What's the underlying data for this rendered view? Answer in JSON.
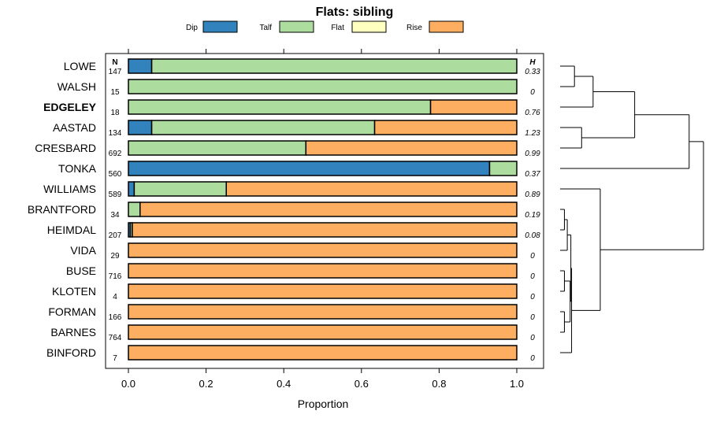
{
  "chart_data": {
    "type": "bar",
    "orientation": "horizontal",
    "stacked": true,
    "title": "Flats: sibling",
    "xlabel": "Proportion",
    "ylabel": "",
    "xlim": [
      0,
      1
    ],
    "xticks": [
      "0.0",
      "0.2",
      "0.4",
      "0.6",
      "0.8",
      "1.0"
    ],
    "legend_position": "top",
    "n_header": "N",
    "h_header": "H",
    "highlighted_category": "EDGELEY",
    "categories": [
      "LOWE",
      "WALSH",
      "EDGELEY",
      "AASTAD",
      "CRESBARD",
      "TONKA",
      "WILLIAMS",
      "BRANTFORD",
      "HEIMDAL",
      "VIDA",
      "BUSE",
      "KLOTEN",
      "FORMAN",
      "BARNES",
      "BINFORD"
    ],
    "n": [
      "147",
      "15",
      "18",
      "134",
      "692",
      "560",
      "589",
      "34",
      "207",
      "29",
      "716",
      "4",
      "166",
      "764",
      "7"
    ],
    "h": [
      "0.33",
      "0",
      "0.76",
      "1.23",
      "0.99",
      "0.37",
      "0.89",
      "0.19",
      "0.08",
      "0",
      "0",
      "0",
      "0",
      "0",
      "0"
    ],
    "series": [
      {
        "name": "Dip",
        "color": "#3182bd",
        "values": [
          0.06,
          0,
          0,
          0.06,
          0,
          0.93,
          0.015,
          0,
          0.005,
          0,
          0,
          0,
          0,
          0,
          0
        ]
      },
      {
        "name": "Talf",
        "color": "#addd9e",
        "values": [
          0.94,
          1.0,
          0.778,
          0.574,
          0.457,
          0.07,
          0.237,
          0.03,
          0.005,
          0,
          0,
          0,
          0,
          0,
          0
        ]
      },
      {
        "name": "Flat",
        "color": "#ffffbf",
        "values": [
          0,
          0,
          0,
          0,
          0,
          0,
          0,
          0,
          0,
          0,
          0,
          0,
          0,
          0,
          0
        ]
      },
      {
        "name": "Rise",
        "color": "#fdae61",
        "values": [
          0,
          0,
          0.222,
          0.366,
          0.543,
          0,
          0.748,
          0.97,
          0.99,
          1.0,
          1.0,
          1.0,
          1.0,
          1.0,
          1.0
        ]
      }
    ],
    "dendrogram": {
      "nodes": [
        {
          "a": "LOWE",
          "b": "WALSH",
          "h": 0.1
        },
        {
          "a": "AASTAD",
          "b": "CRESBARD",
          "h": 0.15
        },
        {
          "a": 0,
          "b": "EDGELEY",
          "h": 0.23
        },
        {
          "a": 2,
          "b": 1,
          "h": 0.52
        },
        {
          "a": 3,
          "b": "TONKA",
          "h": 0.9
        },
        {
          "a": "BRANTFORD",
          "b": "HEIMDAL",
          "h": 0.03
        },
        {
          "a": "BUSE",
          "b": "KLOTEN",
          "h": 0.03
        },
        {
          "a": "FORMAN",
          "b": "BARNES",
          "h": 0.03
        },
        {
          "a": 5,
          "b": "VIDA",
          "h": 0.05
        },
        {
          "a": 6,
          "b": 7,
          "h": 0.07
        },
        {
          "a": 8,
          "b": 9,
          "h": 0.075
        },
        {
          "a": 10,
          "b": "BINFORD",
          "h": 0.08
        },
        {
          "a": "WILLIAMS",
          "b": 11,
          "h": 0.28
        },
        {
          "a": 4,
          "b": 12,
          "h": 1.0
        }
      ]
    }
  }
}
